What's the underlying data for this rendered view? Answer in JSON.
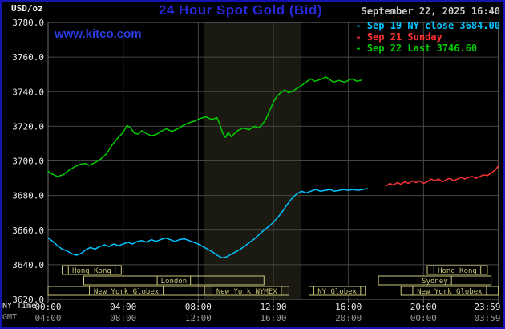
{
  "header": {
    "units_label": "USD/oz",
    "title": "24 Hour Spot Gold (Bid)",
    "datetime": "September 22, 2025 16:40",
    "watermark": "www.kitco.com",
    "legend_bullet": "-",
    "legend": [
      {
        "label": "Sep 19 NY close 3684.00",
        "color": "#00c3ff"
      },
      {
        "label": "Sep 21 Sunday",
        "color": "#ff3333"
      },
      {
        "label": "Sep 22 Last 3746.60",
        "color": "#00cc00"
      }
    ]
  },
  "axes": {
    "ny_time_label": "NY Time",
    "gmt_label": "GMT",
    "y_ticks": [
      {
        "value": 3780,
        "label": "3780.0"
      },
      {
        "value": 3760,
        "label": "3760.0"
      },
      {
        "value": 3740,
        "label": "3740.0"
      },
      {
        "value": 3720,
        "label": "3720.0"
      },
      {
        "value": 3700,
        "label": "3700.0"
      },
      {
        "value": 3680,
        "label": "3680.0"
      },
      {
        "value": 3660,
        "label": "3660.0"
      },
      {
        "value": 3640,
        "label": "3640.0"
      },
      {
        "value": 3620,
        "label": "3620.0"
      }
    ],
    "x_ticks": [
      {
        "hour": 0,
        "ny": "00:00",
        "gmt": "04:00"
      },
      {
        "hour": 4,
        "ny": "04:00",
        "gmt": "08:00"
      },
      {
        "hour": 8,
        "ny": "08:00",
        "gmt": "12:00"
      },
      {
        "hour": 12,
        "ny": "12:00",
        "gmt": "16:00"
      },
      {
        "hour": 16,
        "ny": "16:00",
        "gmt": "20:00"
      },
      {
        "hour": 20,
        "ny": "20:00",
        "gmt": "00:00"
      },
      {
        "hour": 23.983,
        "ny": "23:59",
        "gmt": "03:59"
      }
    ]
  },
  "chart_data": {
    "type": "line",
    "title": "24 Hour Spot Gold (Bid)",
    "ylabel": "USD/oz",
    "ylim": [
      3620,
      3780
    ],
    "xlim_hours": [
      0,
      24
    ],
    "grid": true,
    "legend_position": "top-right",
    "colors": {
      "grid": "#464646",
      "border": "#707070",
      "session": "#ccc87a",
      "band": "#1a1a12",
      "tick_text": "#e8e8e8",
      "gmt_text": "#9a9a9a"
    },
    "highlight_band": {
      "start_hour": 8.33,
      "end_hour": 13.5
    },
    "series": [
      {
        "name": "Sep 19 NY close",
        "color": "#00c3ff",
        "close_value": 3684.0,
        "points": [
          [
            0,
            3655.5
          ],
          [
            0.25,
            3653.5
          ],
          [
            0.5,
            3651
          ],
          [
            0.75,
            3649
          ],
          [
            1,
            3648
          ],
          [
            1.25,
            3646.5
          ],
          [
            1.5,
            3645.5
          ],
          [
            1.75,
            3646.5
          ],
          [
            2,
            3648.5
          ],
          [
            2.25,
            3650
          ],
          [
            2.5,
            3649
          ],
          [
            2.75,
            3650.5
          ],
          [
            3,
            3651.5
          ],
          [
            3.25,
            3650.5
          ],
          [
            3.5,
            3652
          ],
          [
            3.75,
            3651
          ],
          [
            4,
            3652
          ],
          [
            4.25,
            3653
          ],
          [
            4.5,
            3652
          ],
          [
            4.75,
            3653.5
          ],
          [
            5,
            3654
          ],
          [
            5.25,
            3653
          ],
          [
            5.5,
            3654.5
          ],
          [
            5.75,
            3653.5
          ],
          [
            6,
            3654.5
          ],
          [
            6.25,
            3655.5
          ],
          [
            6.5,
            3654.5
          ],
          [
            6.75,
            3653.5
          ],
          [
            7,
            3654.5
          ],
          [
            7.25,
            3655
          ],
          [
            7.5,
            3654
          ],
          [
            7.75,
            3653
          ],
          [
            8,
            3652
          ],
          [
            8.25,
            3650.5
          ],
          [
            8.5,
            3649
          ],
          [
            8.75,
            3647.5
          ],
          [
            9,
            3645.5
          ],
          [
            9.25,
            3644
          ],
          [
            9.5,
            3644.5
          ],
          [
            9.75,
            3646
          ],
          [
            10,
            3647.5
          ],
          [
            10.25,
            3649
          ],
          [
            10.5,
            3651
          ],
          [
            10.75,
            3653
          ],
          [
            11,
            3655
          ],
          [
            11.25,
            3657.5
          ],
          [
            11.5,
            3660
          ],
          [
            11.75,
            3662
          ],
          [
            12,
            3664.5
          ],
          [
            12.25,
            3667.5
          ],
          [
            12.5,
            3671
          ],
          [
            12.75,
            3675
          ],
          [
            13,
            3678.5
          ],
          [
            13.25,
            3681
          ],
          [
            13.5,
            3682.5
          ],
          [
            13.75,
            3681.5
          ],
          [
            14,
            3682.5
          ],
          [
            14.25,
            3683.5
          ],
          [
            14.5,
            3682.5
          ],
          [
            14.75,
            3683
          ],
          [
            15,
            3683.5
          ],
          [
            15.25,
            3682.5
          ],
          [
            15.5,
            3683
          ],
          [
            15.75,
            3683.5
          ],
          [
            16,
            3683
          ],
          [
            16.25,
            3683.5
          ],
          [
            16.5,
            3683
          ],
          [
            16.75,
            3683.5
          ],
          [
            17,
            3684
          ]
        ]
      },
      {
        "name": "Sep 21 Sunday",
        "color": "#ff3333",
        "points": [
          [
            18,
            3685.5
          ],
          [
            18.2,
            3687
          ],
          [
            18.4,
            3686
          ],
          [
            18.6,
            3687.5
          ],
          [
            18.8,
            3686.5
          ],
          [
            19,
            3688
          ],
          [
            19.2,
            3687
          ],
          [
            19.4,
            3688.5
          ],
          [
            19.6,
            3687.5
          ],
          [
            19.8,
            3688.5
          ],
          [
            20,
            3687
          ],
          [
            20.2,
            3688
          ],
          [
            20.4,
            3689.5
          ],
          [
            20.6,
            3688.5
          ],
          [
            20.8,
            3689.5
          ],
          [
            21,
            3688
          ],
          [
            21.2,
            3689
          ],
          [
            21.4,
            3690
          ],
          [
            21.6,
            3688.5
          ],
          [
            21.8,
            3689.5
          ],
          [
            22,
            3690.5
          ],
          [
            22.2,
            3689.5
          ],
          [
            22.4,
            3690.5
          ],
          [
            22.6,
            3691
          ],
          [
            22.8,
            3690
          ],
          [
            23,
            3691
          ],
          [
            23.2,
            3692
          ],
          [
            23.4,
            3691.5
          ],
          [
            23.6,
            3693
          ],
          [
            23.8,
            3694.5
          ],
          [
            23.98,
            3697
          ]
        ]
      },
      {
        "name": "Sep 22 Last",
        "color": "#00cc00",
        "last_value": 3746.6,
        "points": [
          [
            0,
            3694
          ],
          [
            0.2,
            3692.5
          ],
          [
            0.5,
            3691
          ],
          [
            0.8,
            3692
          ],
          [
            1.1,
            3694.5
          ],
          [
            1.4,
            3696.5
          ],
          [
            1.7,
            3698
          ],
          [
            2,
            3698.5
          ],
          [
            2.2,
            3697.5
          ],
          [
            2.5,
            3699
          ],
          [
            2.8,
            3701
          ],
          [
            3.1,
            3704
          ],
          [
            3.4,
            3709
          ],
          [
            3.7,
            3713
          ],
          [
            4,
            3716.5
          ],
          [
            4.2,
            3720.5
          ],
          [
            4.4,
            3719
          ],
          [
            4.6,
            3716
          ],
          [
            4.8,
            3715.5
          ],
          [
            5,
            3717.5
          ],
          [
            5.2,
            3716
          ],
          [
            5.5,
            3714.5
          ],
          [
            5.8,
            3715.5
          ],
          [
            6,
            3717
          ],
          [
            6.3,
            3718.5
          ],
          [
            6.6,
            3717
          ],
          [
            6.9,
            3718.5
          ],
          [
            7.2,
            3720.5
          ],
          [
            7.5,
            3722
          ],
          [
            7.8,
            3723
          ],
          [
            8.1,
            3724.5
          ],
          [
            8.4,
            3725.5
          ],
          [
            8.7,
            3724
          ],
          [
            9,
            3725
          ],
          [
            9.15,
            3721
          ],
          [
            9.3,
            3716
          ],
          [
            9.45,
            3713.5
          ],
          [
            9.6,
            3716.5
          ],
          [
            9.75,
            3714
          ],
          [
            9.9,
            3715.5
          ],
          [
            10.1,
            3717.5
          ],
          [
            10.4,
            3719
          ],
          [
            10.7,
            3718
          ],
          [
            11,
            3720
          ],
          [
            11.2,
            3719
          ],
          [
            11.4,
            3721
          ],
          [
            11.6,
            3724
          ],
          [
            11.8,
            3729
          ],
          [
            12,
            3734
          ],
          [
            12.2,
            3737.5
          ],
          [
            12.4,
            3739.5
          ],
          [
            12.6,
            3741
          ],
          [
            12.8,
            3739.5
          ],
          [
            13,
            3740
          ],
          [
            13.2,
            3741.5
          ],
          [
            13.5,
            3743.5
          ],
          [
            13.8,
            3746
          ],
          [
            14,
            3747.5
          ],
          [
            14.2,
            3746
          ],
          [
            14.5,
            3747
          ],
          [
            14.8,
            3748.5
          ],
          [
            15,
            3747
          ],
          [
            15.2,
            3745.5
          ],
          [
            15.5,
            3746.5
          ],
          [
            15.8,
            3745.5
          ],
          [
            16,
            3746.5
          ],
          [
            16.2,
            3747.5
          ],
          [
            16.45,
            3746
          ],
          [
            16.67,
            3746.6
          ]
        ]
      }
    ],
    "sessions": [
      {
        "row": 0,
        "start": 0.75,
        "end": 3.9,
        "label": "Hong Kong"
      },
      {
        "row": 0,
        "start": 20.2,
        "end": 23.4,
        "label": "Hong Kong"
      },
      {
        "row": 1,
        "start": 1.9,
        "end": 11.5,
        "label": "London"
      },
      {
        "row": 1,
        "start": 17.6,
        "end": 23.6,
        "label": "Sydney"
      },
      {
        "row": 2,
        "start": 0,
        "end": 8.33,
        "label": "New York Globex"
      },
      {
        "row": 2,
        "start": 8.33,
        "end": 12.83,
        "label": "New York NYMEX"
      },
      {
        "row": 2,
        "start": 13.9,
        "end": 16.9,
        "label": "NY Globex"
      },
      {
        "row": 2,
        "start": 18.8,
        "end": 23.983,
        "label": "New York Globex"
      }
    ]
  }
}
